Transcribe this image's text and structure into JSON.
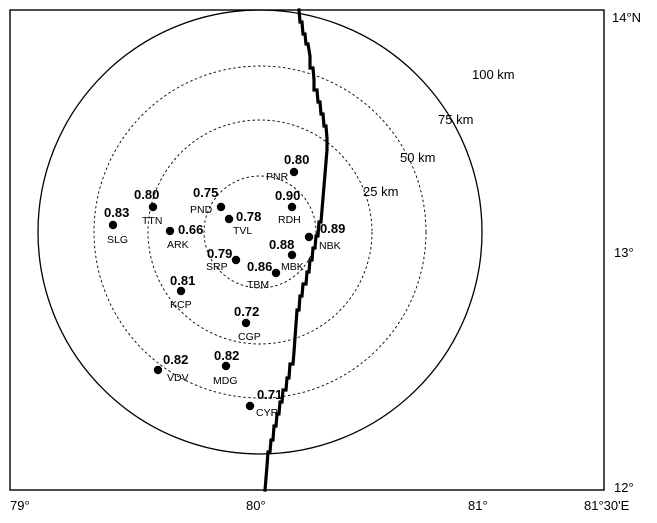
{
  "map": {
    "axes": {
      "lon_ticks": [
        "79°",
        "80°",
        "81°",
        "81°30'E"
      ],
      "lat_ticks": [
        "14°N",
        "13°",
        "12°"
      ]
    },
    "rings": [
      {
        "label": "25 km",
        "style": "dashed"
      },
      {
        "label": "50 km",
        "style": "dashed"
      },
      {
        "label": "75 km",
        "style": "dashed"
      },
      {
        "label": "100 km",
        "style": "solid"
      }
    ],
    "stations": [
      {
        "code": "PNR",
        "value": "0.80"
      },
      {
        "code": "PND",
        "value": "0.75"
      },
      {
        "code": "RDH",
        "value": "0.90"
      },
      {
        "code": "TTN",
        "value": "0.80"
      },
      {
        "code": "SLG",
        "value": "0.83"
      },
      {
        "code": "TVL",
        "value": "0.78"
      },
      {
        "code": "ARK",
        "value": "0.66"
      },
      {
        "code": "NBK",
        "value": "0.89"
      },
      {
        "code": "SRP",
        "value": "0.79"
      },
      {
        "code": "MBK",
        "value": "0.88"
      },
      {
        "code": "TBM",
        "value": "0.86"
      },
      {
        "code": "KCP",
        "value": "0.81"
      },
      {
        "code": "CGP",
        "value": "0.72"
      },
      {
        "code": "VDV",
        "value": "0.82"
      },
      {
        "code": "MDG",
        "value": "0.82"
      },
      {
        "code": "CYR",
        "value": "0.71"
      }
    ],
    "colors": {
      "ink": "#000000",
      "background": "#ffffff"
    }
  }
}
